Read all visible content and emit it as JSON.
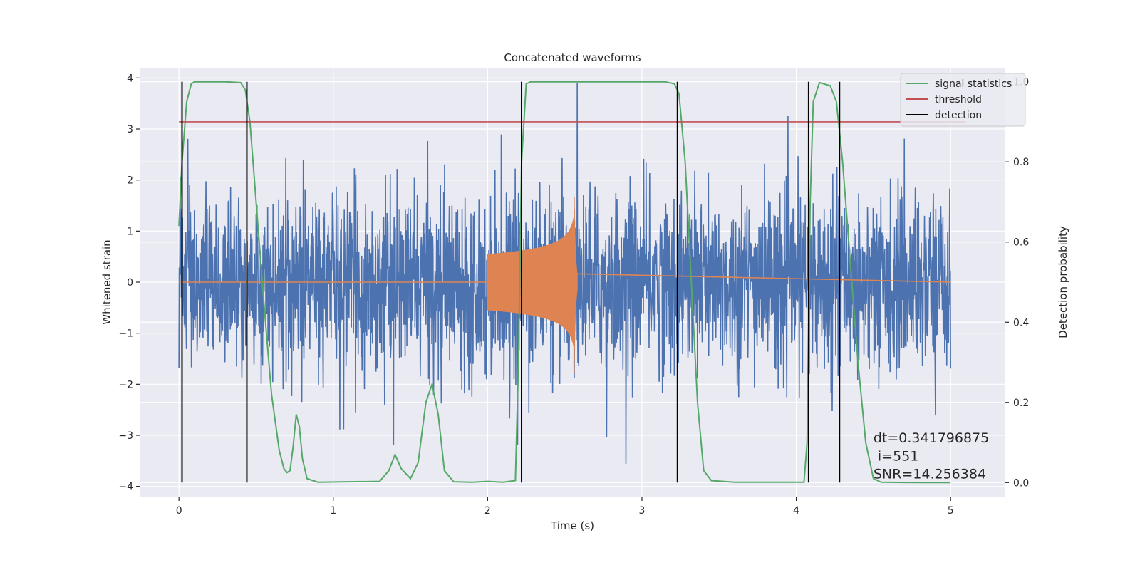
{
  "chart_data": {
    "type": "line",
    "title": "Concatenated waveforms",
    "xlabel": "Time (s)",
    "ylabel": "Whitened strain",
    "y2label": "Detection probability",
    "xlim": [
      -0.25,
      5.35
    ],
    "ylim": [
      -4.2,
      4.2
    ],
    "y2lim": [
      -0.035,
      1.035
    ],
    "x_ticks": [
      0,
      1,
      2,
      3,
      4,
      5
    ],
    "y_ticks": [
      -4,
      -3,
      -2,
      -1,
      0,
      1,
      2,
      3,
      4
    ],
    "y2_ticks": [
      0.0,
      0.2,
      0.4,
      0.6,
      0.8,
      1.0
    ],
    "x_tick_labels": [
      "0",
      "1",
      "2",
      "3",
      "4",
      "5"
    ],
    "y_tick_labels": [
      "−4",
      "−3",
      "−2",
      "−1",
      "0",
      "1",
      "2",
      "3",
      "4"
    ],
    "y2_tick_labels": [
      "0.0",
      "0.2",
      "0.4",
      "0.6",
      "0.8",
      "1.0"
    ],
    "grid": true,
    "legend_position": "top-right",
    "colors": {
      "background": "#eaeaf2",
      "strain": "#4c72b0",
      "injection": "#dd8452",
      "signal": "#55a868",
      "threshold": "#c44e52",
      "detection": "#000000"
    },
    "series": [
      {
        "name": "",
        "role": "strain",
        "description_values": "whitened noise, amplitude roughly within ±2.5, peaks up to 3.9",
        "x_range": [
          0,
          5
        ],
        "seed": 551
      },
      {
        "name": "",
        "role": "injection",
        "x_range": [
          2.0,
          2.58
        ],
        "start_amplitude": 0.55,
        "peak_amplitude": 1.8,
        "peak_time": 2.56
      },
      {
        "name": "signal statistics",
        "role": "signal",
        "axis": "right",
        "points": [
          [
            0.0,
            0.64
          ],
          [
            0.02,
            0.8
          ],
          [
            0.05,
            0.95
          ],
          [
            0.08,
            0.995
          ],
          [
            0.1,
            1.0
          ],
          [
            0.3,
            1.0
          ],
          [
            0.4,
            0.998
          ],
          [
            0.43,
            0.98
          ],
          [
            0.46,
            0.9
          ],
          [
            0.5,
            0.7
          ],
          [
            0.55,
            0.45
          ],
          [
            0.6,
            0.22
          ],
          [
            0.65,
            0.08
          ],
          [
            0.68,
            0.035
          ],
          [
            0.7,
            0.025
          ],
          [
            0.72,
            0.03
          ],
          [
            0.74,
            0.09
          ],
          [
            0.76,
            0.17
          ],
          [
            0.78,
            0.14
          ],
          [
            0.8,
            0.06
          ],
          [
            0.83,
            0.01
          ],
          [
            0.9,
            0.001
          ],
          [
            1.1,
            0.002
          ],
          [
            1.3,
            0.003
          ],
          [
            1.36,
            0.03
          ],
          [
            1.4,
            0.07
          ],
          [
            1.44,
            0.035
          ],
          [
            1.5,
            0.01
          ],
          [
            1.55,
            0.05
          ],
          [
            1.6,
            0.2
          ],
          [
            1.64,
            0.245
          ],
          [
            1.68,
            0.17
          ],
          [
            1.72,
            0.03
          ],
          [
            1.78,
            0.002
          ],
          [
            1.9,
            0.001
          ],
          [
            2.0,
            0.003
          ],
          [
            2.1,
            0.001
          ],
          [
            2.18,
            0.005
          ],
          [
            2.2,
            0.3
          ],
          [
            2.22,
            0.8
          ],
          [
            2.25,
            0.995
          ],
          [
            2.28,
            1.0
          ],
          [
            3.15,
            1.0
          ],
          [
            3.21,
            0.995
          ],
          [
            3.24,
            0.97
          ],
          [
            3.28,
            0.8
          ],
          [
            3.32,
            0.5
          ],
          [
            3.36,
            0.2
          ],
          [
            3.4,
            0.03
          ],
          [
            3.45,
            0.005
          ],
          [
            3.6,
            0.001
          ],
          [
            4.05,
            0.001
          ],
          [
            4.07,
            0.1
          ],
          [
            4.09,
            0.7
          ],
          [
            4.11,
            0.95
          ],
          [
            4.15,
            0.998
          ],
          [
            4.22,
            0.99
          ],
          [
            4.26,
            0.95
          ],
          [
            4.3,
            0.8
          ],
          [
            4.35,
            0.55
          ],
          [
            4.4,
            0.3
          ],
          [
            4.45,
            0.1
          ],
          [
            4.5,
            0.01
          ],
          [
            4.55,
            0.001
          ],
          [
            4.8,
            0.0
          ],
          [
            5.0,
            0.0
          ]
        ]
      },
      {
        "name": "threshold",
        "role": "threshold",
        "axis": "right",
        "points": [
          [
            0.0,
            0.9
          ],
          [
            5.1,
            0.9
          ]
        ]
      },
      {
        "name": "detection",
        "role": "detection",
        "axis": "right",
        "x_positions": [
          0.02,
          0.44,
          2.22,
          3.23,
          4.08,
          4.28
        ],
        "range": [
          0.0,
          1.0
        ]
      }
    ],
    "annotations": [
      {
        "text": "dt=0.341796875",
        "x": 4.5,
        "y2": 0.1
      },
      {
        "text": " i=551",
        "x": 4.5,
        "y2": 0.055
      },
      {
        "text": "SNR=14.256384",
        "x": 4.5,
        "y2": 0.01
      }
    ]
  }
}
